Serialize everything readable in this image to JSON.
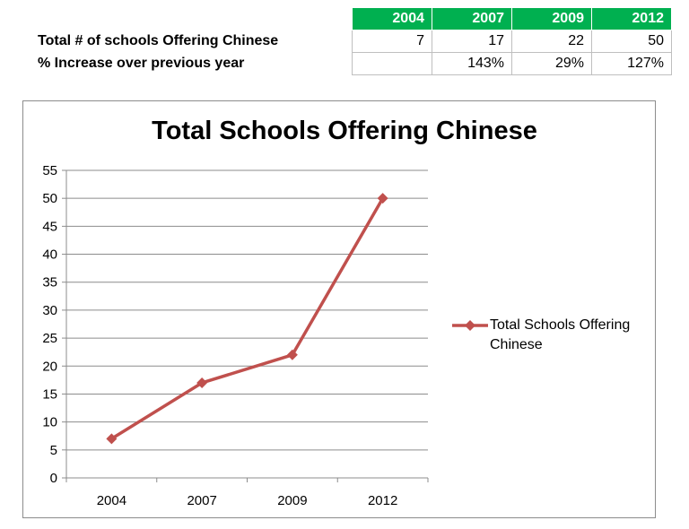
{
  "table": {
    "headers": [
      "2004",
      "2007",
      "2009",
      "2012"
    ],
    "rows": [
      {
        "label": "Total # of schools Offering Chinese",
        "values": [
          "7",
          "17",
          "22",
          "50"
        ]
      },
      {
        "label": "% Increase over previous year",
        "values": [
          "",
          "143%",
          "29%",
          "127%"
        ]
      }
    ]
  },
  "chart_data": {
    "type": "line",
    "title": "Total Schools Offering Chinese",
    "categories": [
      "2004",
      "2007",
      "2009",
      "2012"
    ],
    "series": [
      {
        "name": "Total Schools Offering Chinese",
        "values": [
          7,
          17,
          22,
          50
        ],
        "color": "#c0504d"
      }
    ],
    "ylim": [
      0,
      55
    ],
    "yticks": [
      0,
      5,
      10,
      15,
      20,
      25,
      30,
      35,
      40,
      45,
      50,
      55
    ],
    "grid": true,
    "legend": "right"
  }
}
